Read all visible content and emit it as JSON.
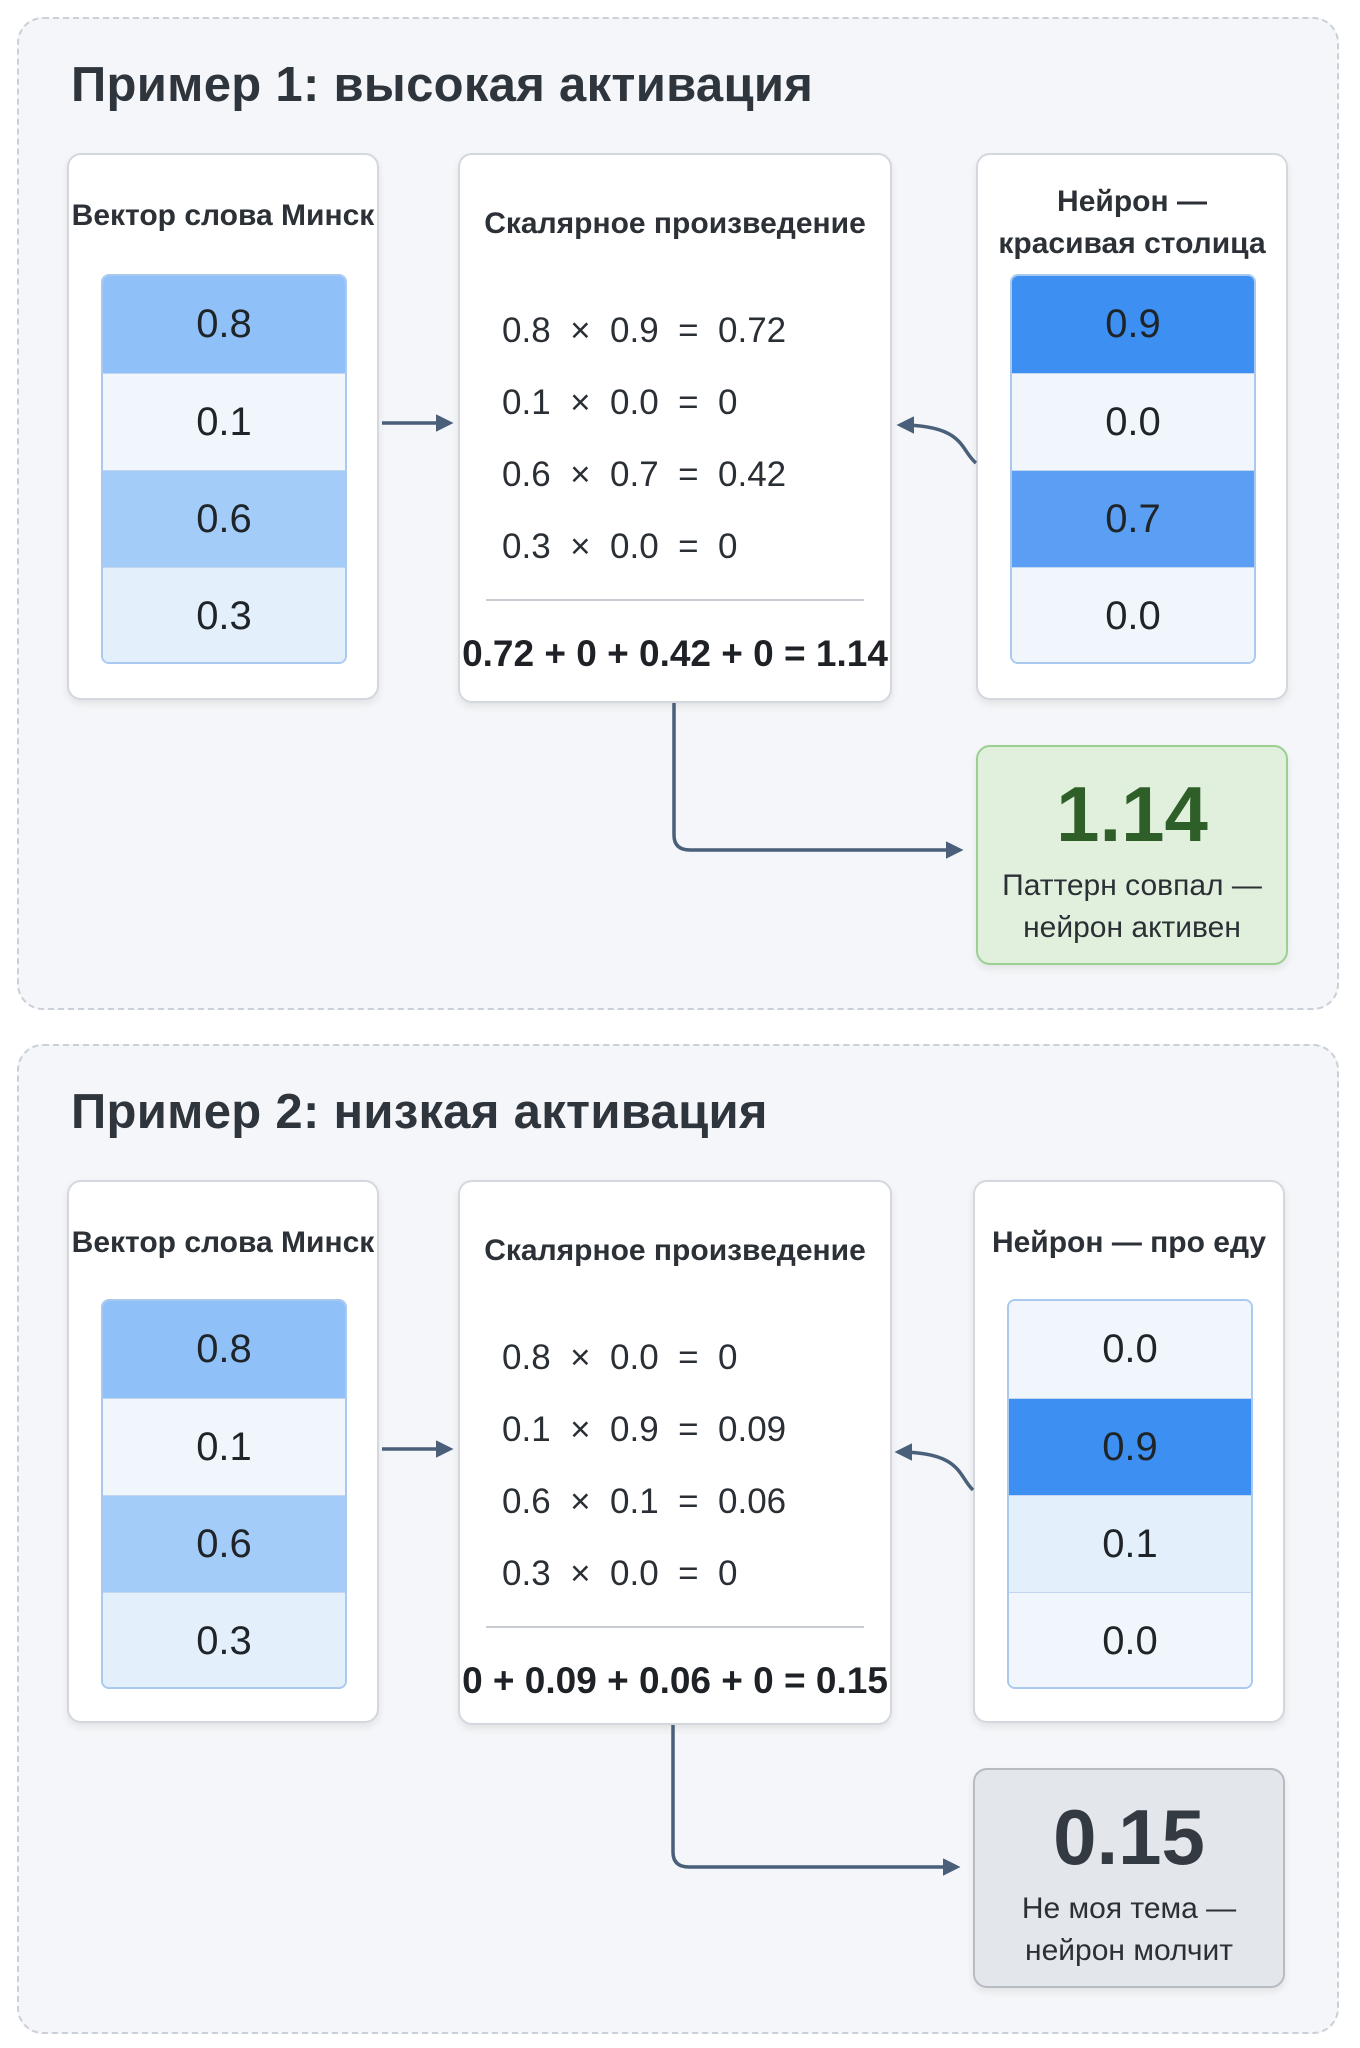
{
  "examples": [
    {
      "title": "Пример 1: высокая активация",
      "word_vector": {
        "label": "Вектор слова Минск",
        "values": [
          "0.8",
          "0.1",
          "0.6",
          "0.3"
        ]
      },
      "neuron": {
        "label": "Нейрон — красивая столица",
        "values": [
          "0.9",
          "0.0",
          "0.7",
          "0.0"
        ]
      },
      "product": {
        "label": "Скалярное произведение",
        "terms": [
          {
            "a": "0.8",
            "b": "0.9",
            "r": "0.72"
          },
          {
            "a": "0.1",
            "b": "0.0",
            "r": "0"
          },
          {
            "a": "0.6",
            "b": "0.7",
            "r": "0.42"
          },
          {
            "a": "0.3",
            "b": "0.0",
            "r": "0"
          }
        ],
        "sum": "0.72 + 0 + 0.42 + 0 = 1.14"
      },
      "result": {
        "value": "1.14",
        "message": "Паттерн совпал — нейрон активен"
      }
    },
    {
      "title": "Пример 2: низкая активация",
      "word_vector": {
        "label": "Вектор слова Минск",
        "values": [
          "0.8",
          "0.1",
          "0.6",
          "0.3"
        ]
      },
      "neuron": {
        "label": "Нейрон — про еду",
        "values": [
          "0.0",
          "0.9",
          "0.1",
          "0.0"
        ]
      },
      "product": {
        "label": "Скалярное произведение",
        "terms": [
          {
            "a": "0.8",
            "b": "0.0",
            "r": "0"
          },
          {
            "a": "0.1",
            "b": "0.9",
            "r": "0.09"
          },
          {
            "a": "0.6",
            "b": "0.1",
            "r": "0.06"
          },
          {
            "a": "0.3",
            "b": "0.0",
            "r": "0"
          }
        ],
        "sum": "0 + 0.09 + 0.06 + 0 = 0.15"
      },
      "result": {
        "value": "0.15",
        "message": "Не моя тема — нейрон молчит"
      }
    }
  ],
  "colors": {
    "arrow": "#4a5f79",
    "result_high_bg": "#e1f0dc",
    "result_low_bg": "#e3e6ea",
    "vector_strong": "#3d8ff2",
    "vector_light": "#f1f6fd"
  }
}
